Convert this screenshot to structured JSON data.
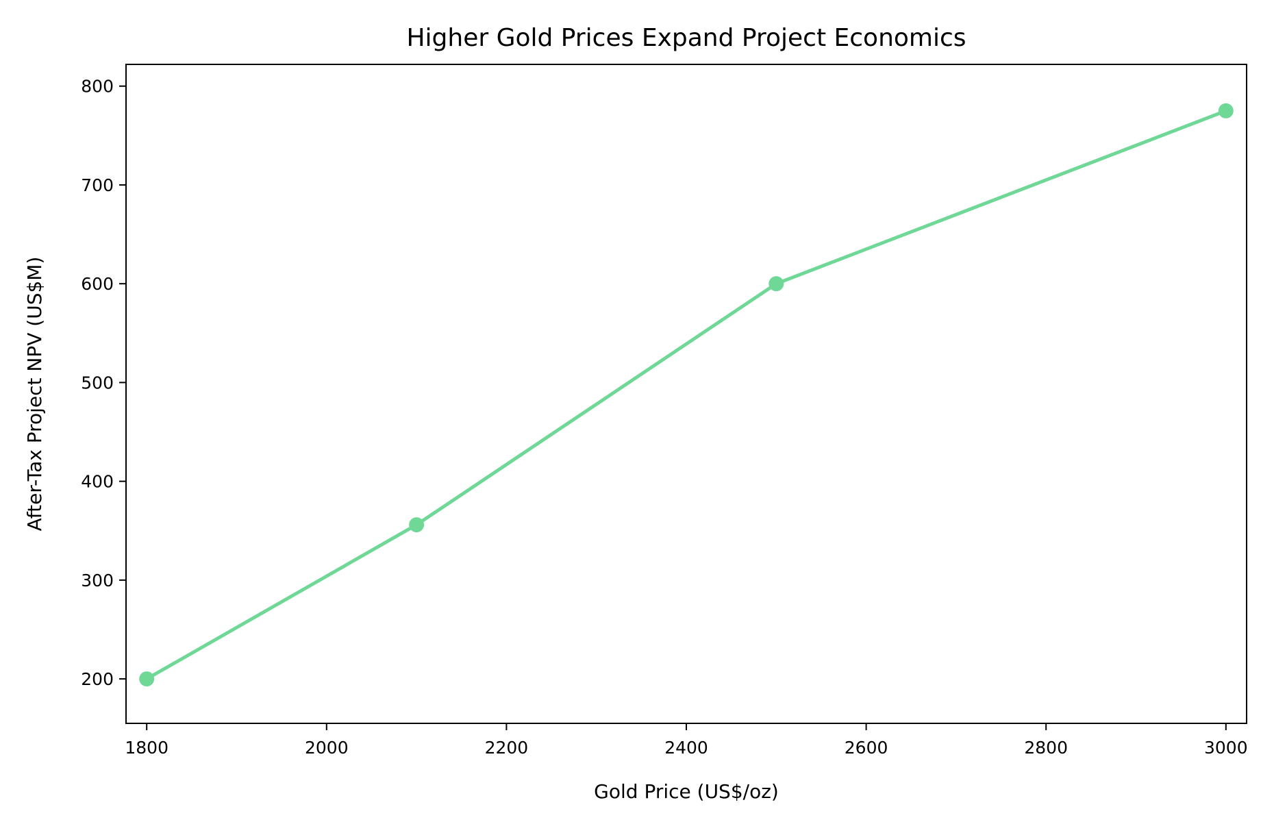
{
  "chart_data": {
    "type": "line",
    "title": "Higher Gold Prices Expand Project Economics",
    "xlabel": "Gold Price (US$/oz)",
    "ylabel": "After-Tax Project NPV (US$M)",
    "x": [
      1800,
      2100,
      2500,
      3000
    ],
    "series": [
      {
        "name": "After-Tax Project NPV",
        "values": [
          200,
          356,
          600,
          775
        ],
        "color": "#6fd897"
      }
    ],
    "xlim": [
      1777,
      3023
    ],
    "ylim": [
      155,
      822
    ],
    "xticks": [
      1800,
      2000,
      2200,
      2400,
      2600,
      2800,
      3000
    ],
    "yticks": [
      200,
      300,
      400,
      500,
      600,
      700,
      800
    ],
    "grid": false,
    "legend": "none"
  }
}
